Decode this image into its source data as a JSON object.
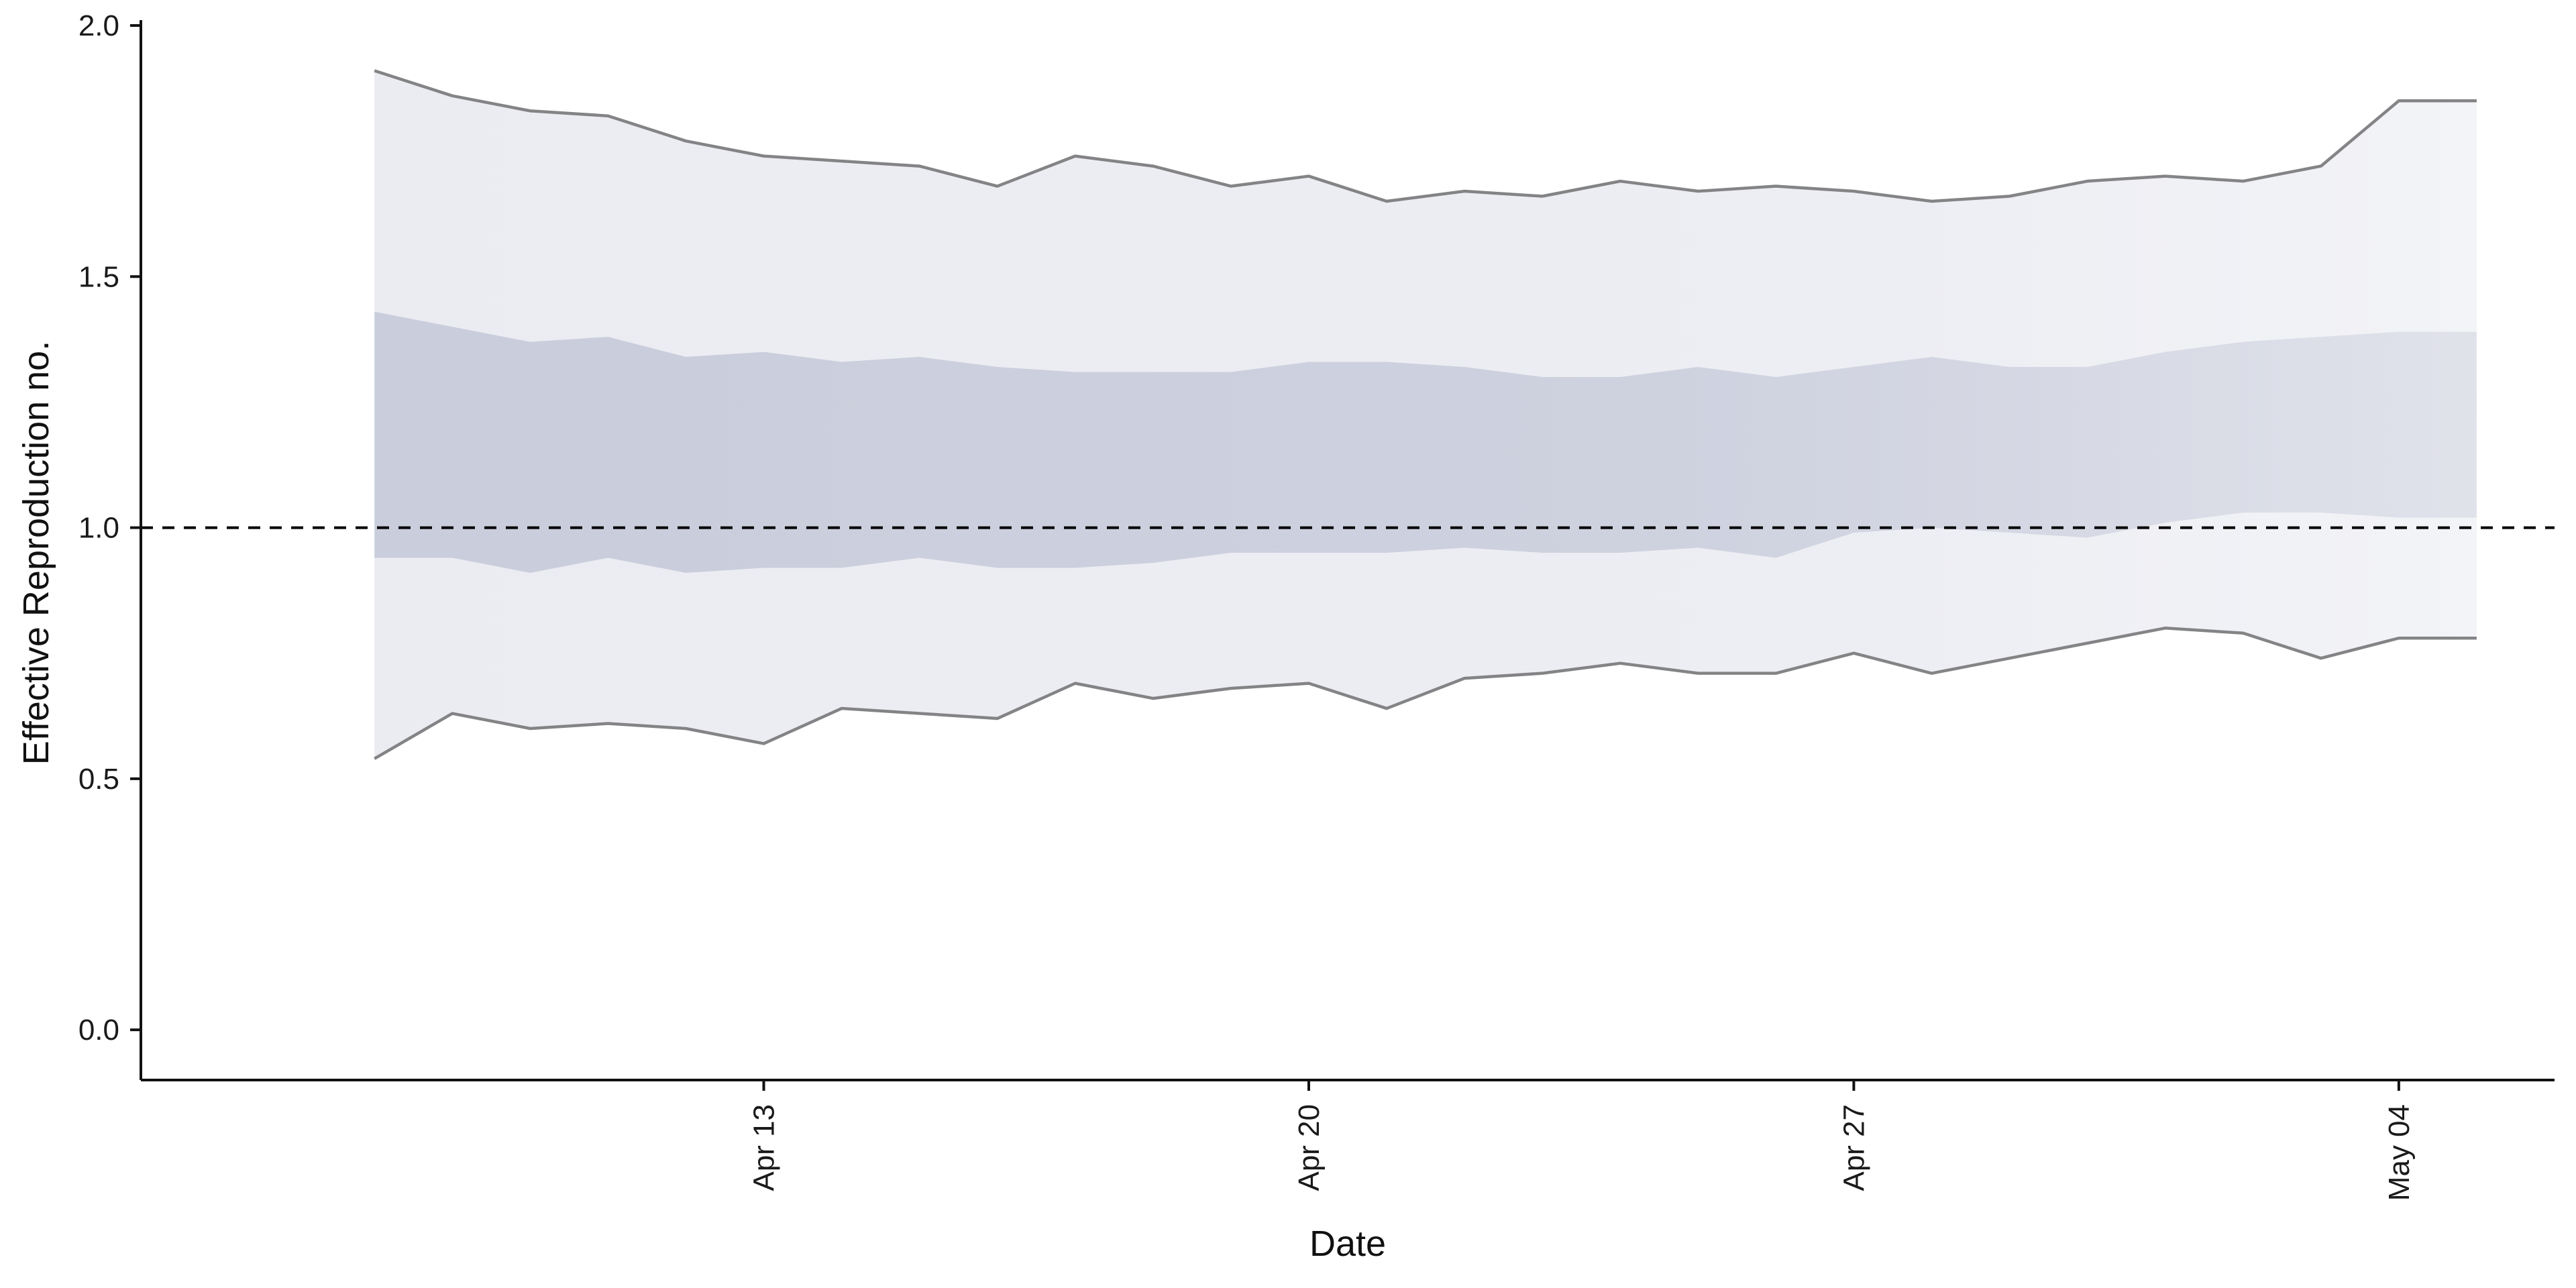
{
  "chart_data": {
    "type": "area",
    "title": "",
    "xlabel": "Date",
    "ylabel": "Effective Reproduction no.",
    "ylim": [
      -0.1,
      2.0
    ],
    "y_ticks": [
      0.0,
      0.5,
      1.0,
      1.5,
      2.0
    ],
    "y_tick_labels": [
      "0.0",
      "0.5",
      "1.0",
      "1.5",
      "2.0"
    ],
    "x_tick_labels": [
      "Apr 13",
      "Apr 20",
      "Apr 27",
      "May 04"
    ],
    "x_ticks": [
      "2020-04-13",
      "2020-04-20",
      "2020-04-27",
      "2020-05-04"
    ],
    "xlim": [
      "2020-04-05",
      "2020-05-06"
    ],
    "reference_line": {
      "y": 1.0,
      "style": "dashed"
    },
    "grid": false,
    "legend": "none",
    "colors": {
      "outer_band": "#dfe1ea",
      "inner_band": "#b5bace",
      "bound_line": "#7d7d80",
      "reference_line": "#000000"
    },
    "x": [
      "2020-04-08",
      "2020-04-09",
      "2020-04-10",
      "2020-04-11",
      "2020-04-12",
      "2020-04-13",
      "2020-04-14",
      "2020-04-15",
      "2020-04-16",
      "2020-04-17",
      "2020-04-18",
      "2020-04-19",
      "2020-04-20",
      "2020-04-21",
      "2020-04-22",
      "2020-04-23",
      "2020-04-24",
      "2020-04-25",
      "2020-04-26",
      "2020-04-27",
      "2020-04-28",
      "2020-04-29",
      "2020-04-30",
      "2020-05-01",
      "2020-05-02",
      "2020-05-03",
      "2020-05-04",
      "2020-05-05"
    ],
    "series": [
      {
        "name": "",
        "role": "outer-upper",
        "values": [
          1.91,
          1.86,
          1.83,
          1.82,
          1.77,
          1.74,
          1.73,
          1.72,
          1.68,
          1.74,
          1.72,
          1.68,
          1.7,
          1.65,
          1.67,
          1.66,
          1.69,
          1.67,
          1.68,
          1.67,
          1.65,
          1.66,
          1.69,
          1.7,
          1.69,
          1.72,
          1.85,
          1.85
        ]
      },
      {
        "name": "",
        "role": "inner-upper",
        "values": [
          1.43,
          1.4,
          1.37,
          1.38,
          1.34,
          1.35,
          1.33,
          1.34,
          1.32,
          1.31,
          1.31,
          1.31,
          1.33,
          1.33,
          1.32,
          1.3,
          1.3,
          1.32,
          1.3,
          1.32,
          1.34,
          1.32,
          1.32,
          1.35,
          1.37,
          1.38,
          1.39,
          1.39
        ]
      },
      {
        "name": "",
        "role": "inner-lower",
        "values": [
          0.94,
          0.94,
          0.91,
          0.94,
          0.91,
          0.92,
          0.92,
          0.94,
          0.92,
          0.92,
          0.93,
          0.95,
          0.95,
          0.95,
          0.96,
          0.95,
          0.95,
          0.96,
          0.94,
          0.99,
          1.0,
          0.99,
          0.98,
          1.01,
          1.03,
          1.03,
          1.02,
          1.02
        ]
      },
      {
        "name": "",
        "role": "outer-lower",
        "values": [
          0.54,
          0.63,
          0.6,
          0.61,
          0.6,
          0.57,
          0.64,
          0.63,
          0.62,
          0.69,
          0.66,
          0.68,
          0.69,
          0.64,
          0.7,
          0.71,
          0.73,
          0.71,
          0.71,
          0.75,
          0.71,
          0.74,
          0.77,
          0.8,
          0.79,
          0.74,
          0.78,
          0.78
        ]
      }
    ]
  }
}
